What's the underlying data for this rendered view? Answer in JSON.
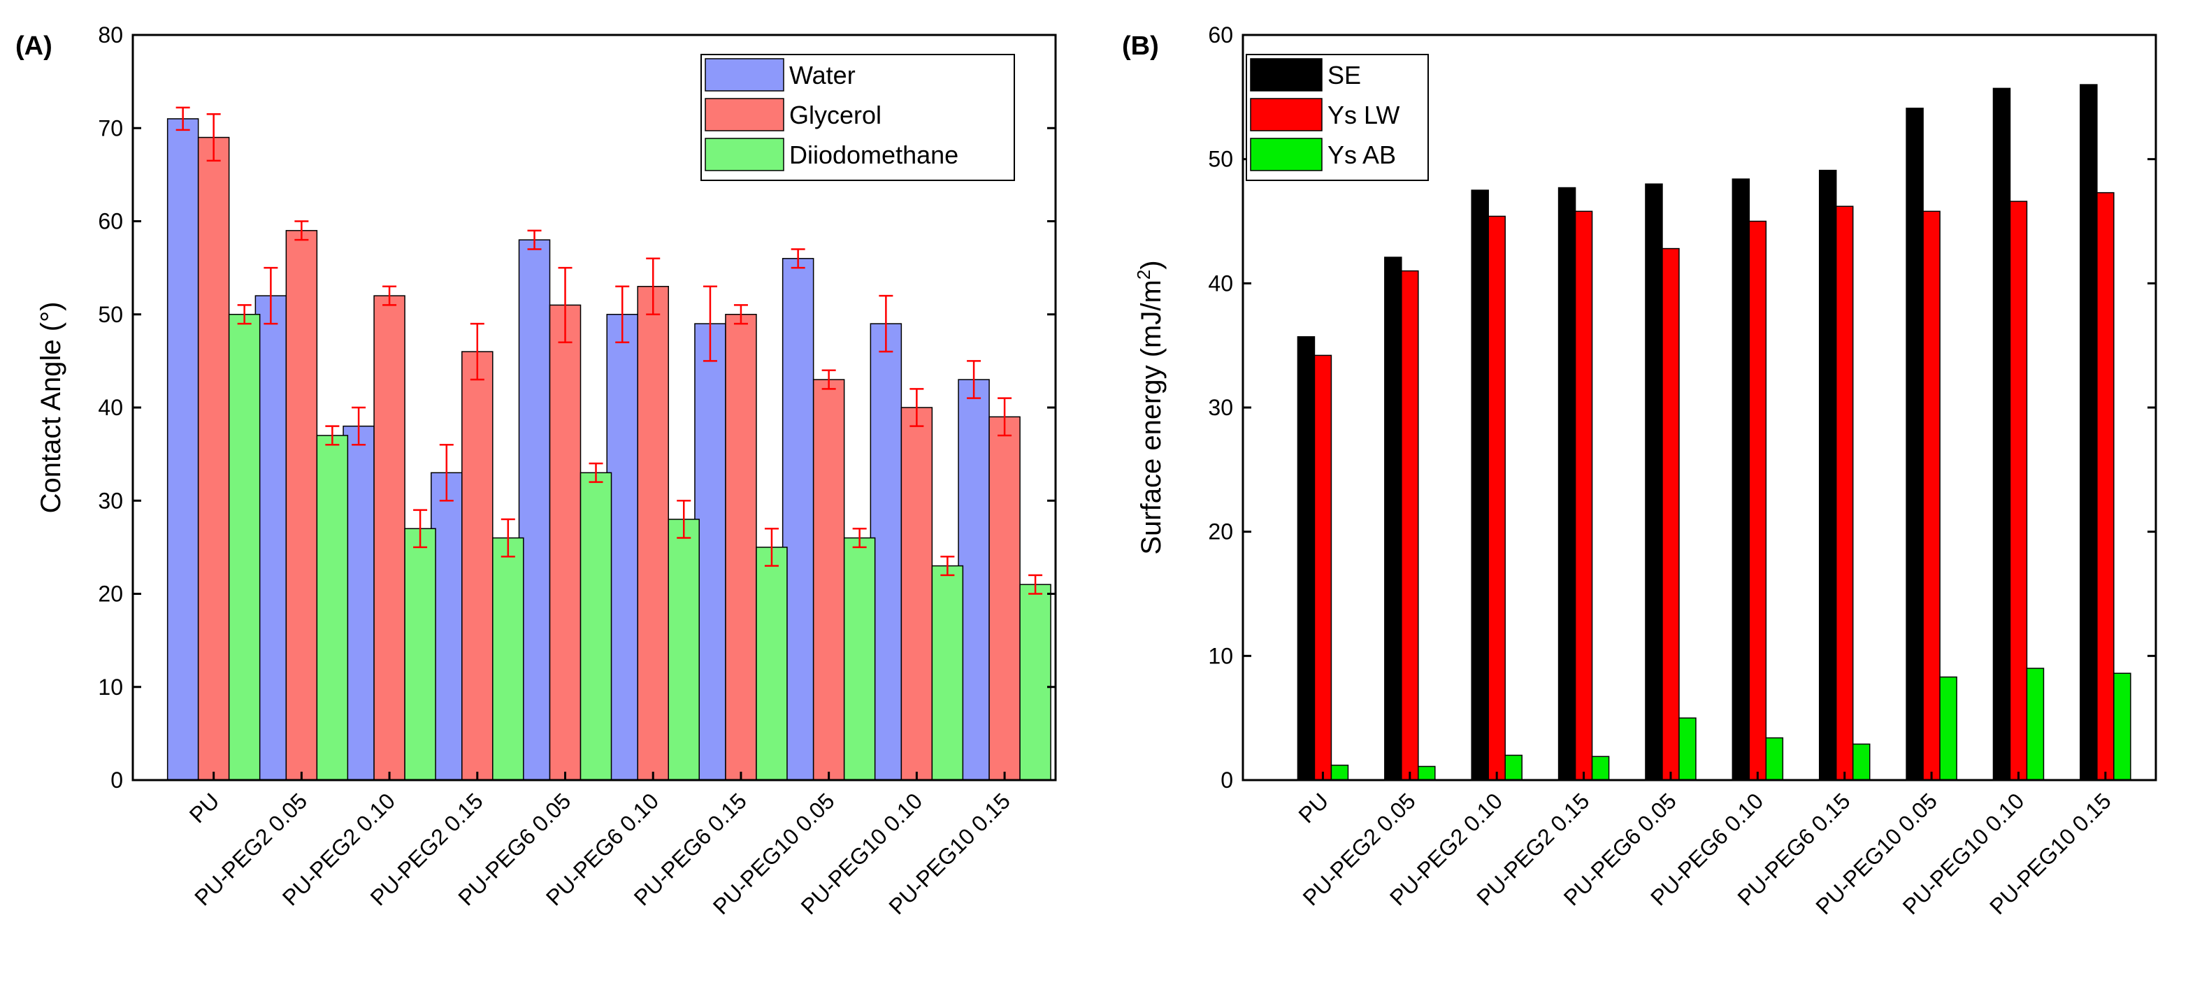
{
  "figure": {
    "panels": [
      "(A)",
      "(B)"
    ]
  },
  "chart_data": [
    {
      "type": "bar",
      "panel_label": "(A)",
      "title": "",
      "xlabel": "",
      "ylabel": "Contact Angle (°)",
      "ylim": [
        0,
        80
      ],
      "yticks": [
        0,
        10,
        20,
        30,
        40,
        50,
        60,
        70,
        80
      ],
      "grid": false,
      "legend_position": "top-right",
      "categories": [
        "PU",
        "PU-PEG2 0.05",
        "PU-PEG2 0.10",
        "PU-PEG2 0.15",
        "PU-PEG6 0.05",
        "PU-PEG6 0.10",
        "PU-PEG6 0.15",
        "PU-PEG10 0.05",
        "PU-PEG10 0.10",
        "PU-PEG10 0.15"
      ],
      "series": [
        {
          "name": "Water",
          "color": "#8d99fb",
          "values": [
            71,
            52,
            38,
            33,
            58,
            50,
            49,
            56,
            49,
            43
          ],
          "errors": [
            1.2,
            3,
            2,
            3,
            1,
            3,
            4,
            1,
            3,
            2
          ]
        },
        {
          "name": "Glycerol",
          "color": "#fd7873",
          "values": [
            69,
            59,
            52,
            46,
            51,
            53,
            50,
            43,
            40,
            39
          ],
          "errors": [
            2.5,
            1,
            1,
            3,
            4,
            3,
            1,
            1,
            2,
            2
          ]
        },
        {
          "name": "Diiodomethane",
          "color": "#79f57c",
          "values": [
            50,
            37,
            27,
            26,
            33,
            28,
            25,
            26,
            23,
            21
          ],
          "errors": [
            1,
            1,
            2,
            2,
            1,
            2,
            2,
            1,
            1,
            1
          ]
        }
      ],
      "error_bar_color": "#ff0000"
    },
    {
      "type": "bar",
      "panel_label": "(B)",
      "title": "",
      "xlabel": "",
      "ylabel": "Surface energy (mJ/m",
      "ylabel_sup": "2",
      "ylabel_close": ")",
      "ylim": [
        0,
        60
      ],
      "yticks": [
        0,
        10,
        20,
        30,
        40,
        50,
        60
      ],
      "grid": false,
      "legend_position": "top-left",
      "categories": [
        "PU",
        "PU-PEG2 0.05",
        "PU-PEG2 0.10",
        "PU-PEG2 0.15",
        "PU-PEG6 0.05",
        "PU-PEG6 0.10",
        "PU-PEG6 0.15",
        "PU-PEG10 0.05",
        "PU-PEG10 0.10",
        "PU-PEG10 0.15"
      ],
      "series": [
        {
          "name": "SE",
          "color": "#000000",
          "values": [
            35.7,
            42.1,
            47.5,
            47.7,
            48.0,
            48.4,
            49.1,
            54.1,
            55.7,
            56.0
          ]
        },
        {
          "name": "Ys LW",
          "color": "#ff0000",
          "values": [
            34.2,
            41.0,
            45.4,
            45.8,
            42.8,
            45.0,
            46.2,
            45.8,
            46.6,
            47.3
          ]
        },
        {
          "name": "Ys AB",
          "color": "#00ee00",
          "values": [
            1.2,
            1.1,
            2.0,
            1.9,
            5.0,
            3.4,
            2.9,
            8.3,
            9.0,
            8.6
          ]
        }
      ]
    }
  ]
}
